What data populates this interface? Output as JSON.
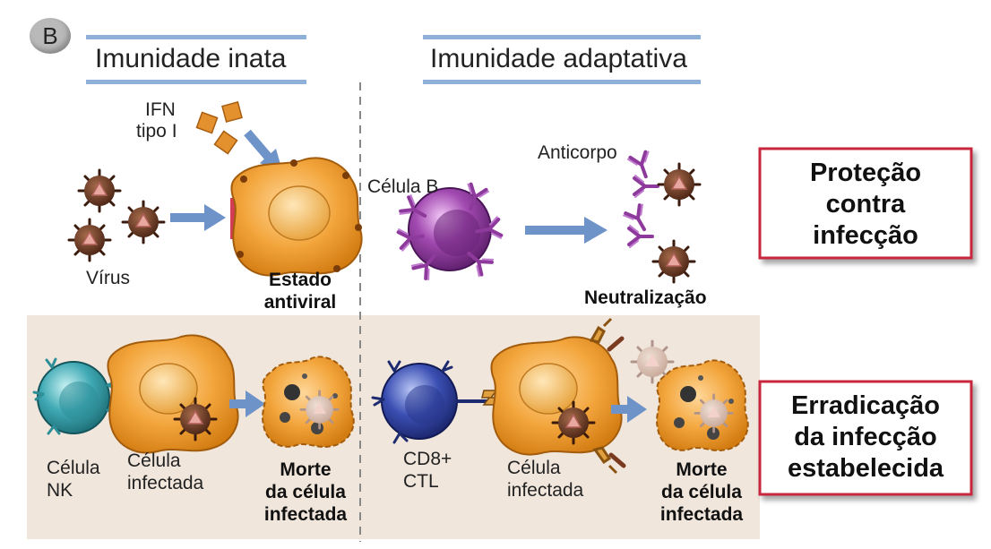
{
  "panel_letter": "B",
  "headers": {
    "innate": "Imunidade inata",
    "adaptive": "Imunidade adaptativa"
  },
  "top_row": {
    "ifn_line1": "IFN",
    "ifn_line2": "tipo I",
    "virus": "Vírus",
    "antiviral_line1": "Estado",
    "antiviral_line2": "antiviral",
    "b_cell": "Célula B",
    "antibody": "Anticorpo",
    "neutralization": "Neutralização"
  },
  "bottom_row": {
    "nk_line1": "Célula",
    "nk_line2": "NK",
    "infected_line1": "Célula",
    "infected_line2": "infectada",
    "death_line1": "Morte",
    "death_line2": "da célula",
    "death_line3": "infectada",
    "ctl_line1": "CD8+",
    "ctl_line2": "CTL",
    "infected2_line1": "Célula",
    "infected2_line2": "infectada",
    "death2_line1": "Morte",
    "death2_line2": "da célula",
    "death2_line3": "infectada"
  },
  "boxes": {
    "protection": [
      "Proteção",
      "contra",
      "infecção"
    ],
    "eradication": [
      "Erradicação",
      "da infecção",
      "estabelecida"
    ]
  },
  "colors": {
    "accent_box_border": "#c8283c",
    "header_bar": "#8fb0d8",
    "arrow": "#6e93c9",
    "bottom_panel_bg": "#f0e6dc",
    "cell_orange": "#f0a23a",
    "b_cell": "#8e3a9c",
    "nk_cell": "#3fa9b4",
    "ctl_cell": "#2e3f9c"
  }
}
